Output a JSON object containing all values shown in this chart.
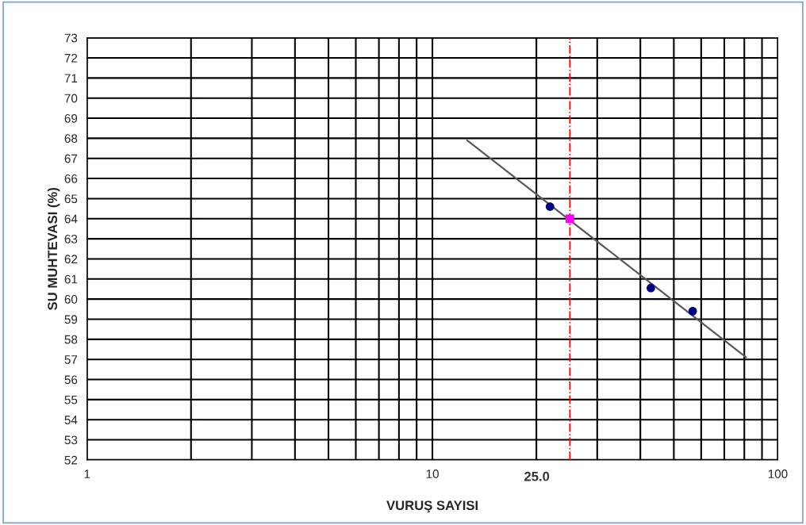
{
  "chart_data": {
    "type": "scatter",
    "xlabel": "VURUŞ SAYISI",
    "ylabel": "SU MUHTEVASI (%)",
    "log": "x",
    "xlim": [
      1,
      100
    ],
    "ylim": [
      52,
      73
    ],
    "xticks": [
      1,
      {
        "value": 2,
        "label": null
      },
      {
        "value": 3,
        "label": null
      },
      {
        "value": 4,
        "label": null
      },
      {
        "value": 5,
        "label": null
      },
      {
        "value": 6,
        "label": null
      },
      {
        "value": 7,
        "label": null
      },
      {
        "value": 8,
        "label": null
      },
      {
        "value": 9,
        "label": null
      },
      10,
      {
        "value": 20,
        "label": null
      },
      {
        "value": 30,
        "label": null
      },
      {
        "value": 40,
        "label": null
      },
      {
        "value": 50,
        "label": null
      },
      {
        "value": 60,
        "label": null
      },
      {
        "value": 70,
        "label": null
      },
      {
        "value": 80,
        "label": null
      },
      {
        "value": 90,
        "label": null
      },
      100
    ],
    "yticks": [
      52,
      53,
      54,
      55,
      56,
      57,
      58,
      59,
      60,
      61,
      62,
      63,
      64,
      65,
      66,
      67,
      68,
      69,
      70,
      71,
      72,
      73
    ],
    "grid": true,
    "series": [
      {
        "type": "line",
        "color": "#595959",
        "x": [
          12.6,
          81
        ],
        "values": [
          67.9,
          57.1
        ],
        "marker": "none",
        "line_style": "solid"
      },
      {
        "color": "#000080",
        "x": [
          21.9,
          42.9,
          56.7
        ],
        "values": [
          64.6,
          60.55,
          59.4
        ],
        "marker": "circle"
      },
      {
        "color": "#ff00ff",
        "x": [
          25.0
        ],
        "values": [
          64.0
        ],
        "marker": "square"
      }
    ],
    "ref_lines": [
      {
        "axis": "x",
        "value": 25.0,
        "label": "25.0",
        "color": "#ff0000",
        "line_style": "dashdot"
      }
    ]
  }
}
